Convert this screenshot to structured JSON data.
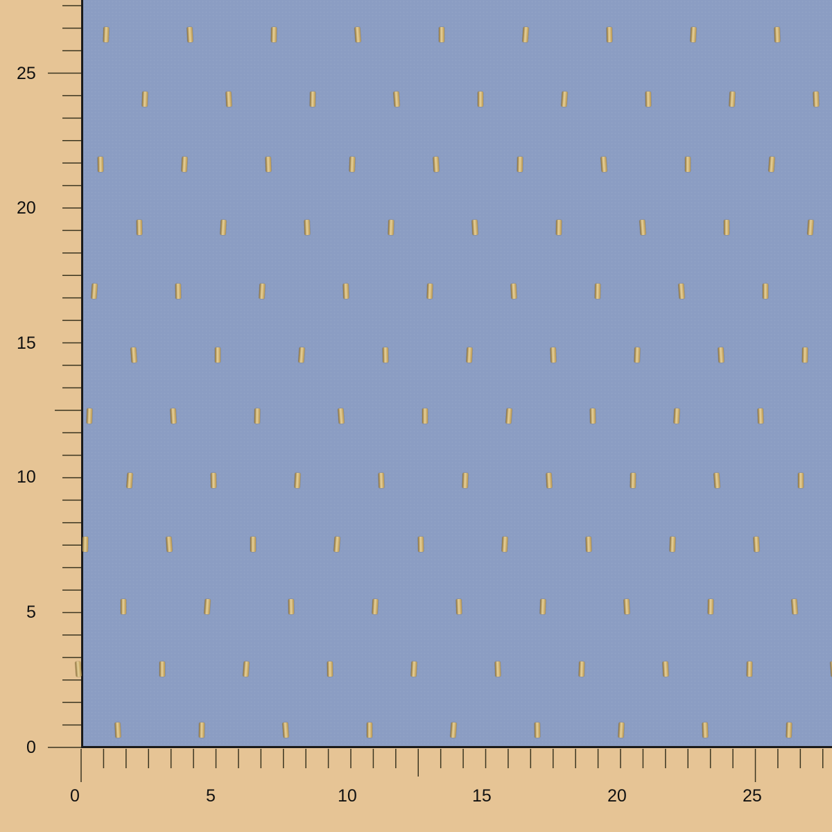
{
  "ruler": {
    "x_labels": [
      "0",
      "5",
      "10",
      "15",
      "20",
      "25"
    ],
    "y_labels": [
      "0",
      "5",
      "10",
      "15",
      "20",
      "25"
    ]
  },
  "colors": {
    "fabric": "#8b9dc3",
    "background": "#e6c495",
    "motif": "#d9bf7f"
  }
}
